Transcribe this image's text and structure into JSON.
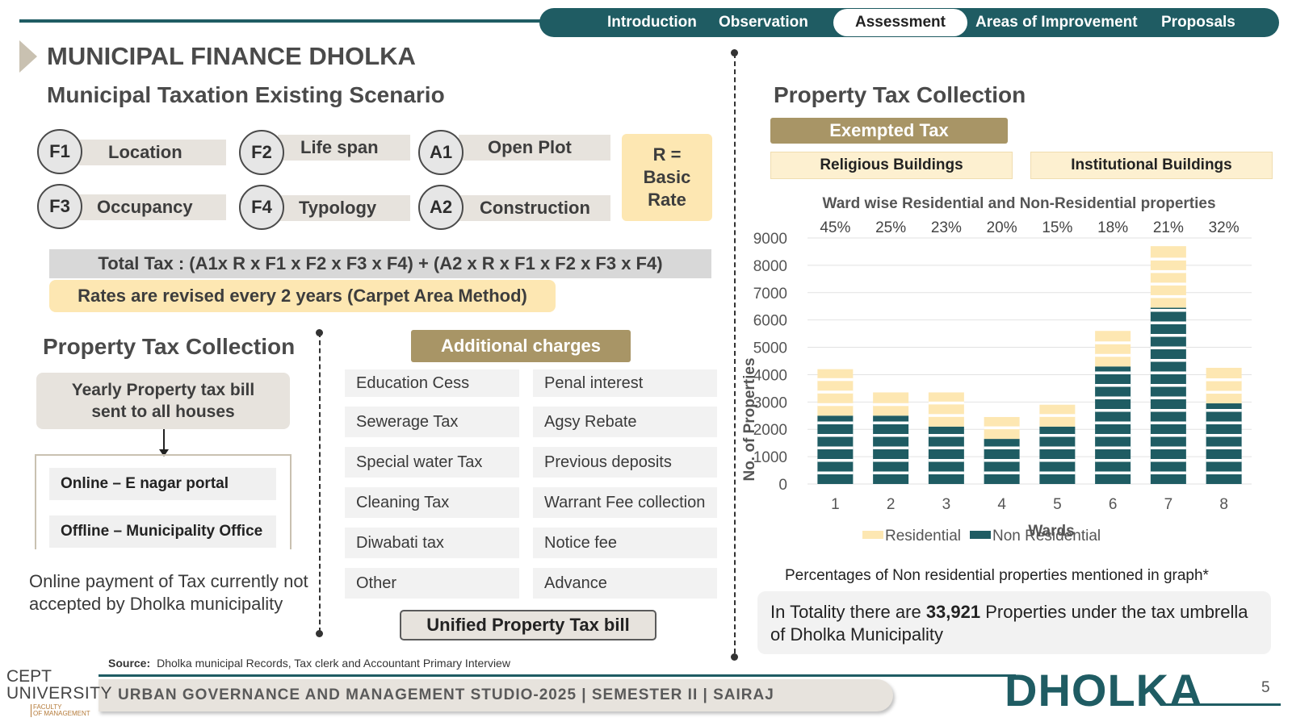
{
  "nav": {
    "tabs": [
      {
        "label": "Introduction"
      },
      {
        "label": "Observation"
      },
      {
        "label": "Assessment"
      },
      {
        "label": "Areas of Improvement"
      },
      {
        "label": "Proposals"
      }
    ],
    "active": "Assessment"
  },
  "header": {
    "title": "MUNICIPAL FINANCE DHOLKA",
    "subtitle": "Municipal Taxation Existing Scenario"
  },
  "factors": [
    {
      "code": "F1",
      "label": "Location"
    },
    {
      "code": "F2",
      "label": "Life span"
    },
    {
      "code": "A1",
      "label": "Open Plot"
    },
    {
      "code": "F3",
      "label": "Occupancy"
    },
    {
      "code": "F4",
      "label": "Typology"
    },
    {
      "code": "A2",
      "label": "Construction"
    }
  ],
  "rate_box": {
    "line1": "R =",
    "line2": "Basic",
    "line3": "Rate"
  },
  "formula": "Total Tax : (A1x R x F1 x F2 x F3 x F4) + (A2 x R x F1 x F2 x F3 x F4)",
  "revision_note": "Rates are revised every 2 years (Carpet Area Method)",
  "left_section": {
    "title": "Property Tax Collection",
    "bill_line1": "Yearly Property tax bill",
    "bill_line2": "sent to all houses",
    "modes": [
      "Online – E nagar portal",
      "Offline – Municipality Office"
    ],
    "note": "Online payment of Tax currently not accepted by Dholka municipality"
  },
  "additional_charges": {
    "title": "Additional charges",
    "left": [
      "Education Cess",
      "Sewerage Tax",
      "Special water Tax",
      "Cleaning Tax",
      "Diwabati  tax",
      "Other"
    ],
    "right": [
      "Penal interest",
      "Agsy Rebate",
      "Previous deposits",
      "Warrant Fee collection",
      "Notice fee",
      "Advance"
    ],
    "unified": "Unified Property Tax bill"
  },
  "source": {
    "label": "Source:",
    "text": "Dholka municipal Records, Tax clerk and Accountant Primary Interview"
  },
  "right_section": {
    "title": "Property Tax Collection",
    "exempted_title": "Exempted Tax",
    "exempted": [
      "Religious Buildings",
      "Institutional Buildings"
    ],
    "pct_note": "Percentages of Non residential properties mentioned in graph*",
    "total_pre": "In Totality there are ",
    "total_num": "33,921",
    "total_post": " Properties under the tax umbrella of Dholka Municipality"
  },
  "chart_data": {
    "type": "bar",
    "stacked": true,
    "title": "Ward wise Residential and Non-Residential properties",
    "xlabel": "Wards",
    "ylabel": "No. of Properties",
    "categories": [
      "1",
      "2",
      "3",
      "4",
      "5",
      "6",
      "7",
      "8"
    ],
    "ylim": [
      0,
      9000
    ],
    "yticks": [
      0,
      1000,
      2000,
      3000,
      4000,
      5000,
      6000,
      7000,
      8000,
      9000
    ],
    "series": [
      {
        "name": "Non Residential",
        "color": "#1f5c63",
        "values": [
          2500,
          2500,
          2100,
          1650,
          2100,
          4300,
          6450,
          2950
        ]
      },
      {
        "name": "Residential",
        "color": "#fde7b2",
        "values": [
          1700,
          850,
          1250,
          800,
          800,
          1300,
          2250,
          1300
        ]
      }
    ],
    "annotations": [
      "45%",
      "25%",
      "23%",
      "20%",
      "15%",
      "18%",
      "21%",
      "32%"
    ],
    "legend": "bottom",
    "grid": true
  },
  "footer": {
    "studio": "URBAN GOVERNANCE AND MANAGEMENT STUDIO-2025 | SEMESTER II | SAIRAJ",
    "brand": "DHOLKA",
    "page": "5",
    "logo_line1": "CEPT",
    "logo_line2": "UNIVERSITY",
    "logo_line3": "FACULTY",
    "logo_line4": "OF MANAGEMENT"
  }
}
